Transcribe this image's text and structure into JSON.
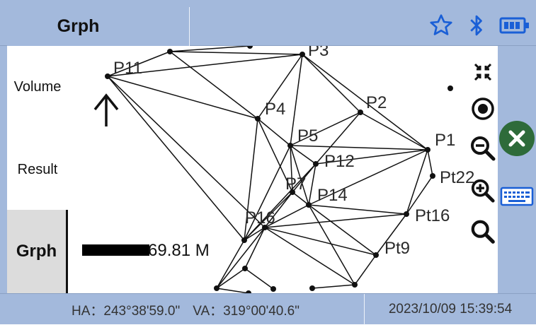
{
  "header": {
    "title": "Grph",
    "icons": [
      "star-icon",
      "bluetooth-icon",
      "battery-icon"
    ]
  },
  "sidebar": {
    "items": [
      {
        "label": "Volume",
        "active": false
      },
      {
        "label": "Result",
        "active": false
      },
      {
        "label": "Grph",
        "active": true
      }
    ]
  },
  "graph": {
    "points": [
      {
        "name": "P11",
        "show_label": true
      },
      {
        "name": "P3",
        "show_label": true
      },
      {
        "name": "P2",
        "show_label": true
      },
      {
        "name": "P4",
        "show_label": true
      },
      {
        "name": "P5",
        "show_label": true
      },
      {
        "name": "P1",
        "show_label": true
      },
      {
        "name": "P12",
        "show_label": true
      },
      {
        "name": "Pt22",
        "show_label": true
      },
      {
        "name": "P14",
        "show_label": true
      },
      {
        "name": "P7",
        "show_label": true
      },
      {
        "name": "Pt16",
        "show_label": true
      },
      {
        "name": "Pt9",
        "show_label": true
      },
      {
        "name": "P16",
        "show_label": true
      }
    ],
    "scale_text": "69.81 M",
    "north_arrow": "north-arrow-icon"
  },
  "tools": {
    "icons": [
      "collapse-icon",
      "locate-icon",
      "zoom-out-icon",
      "zoom-in-icon",
      "search-icon",
      "close-icon",
      "keyboard-icon"
    ]
  },
  "status": {
    "ha": "HA：243°38'59.0\"",
    "va": "VA：319°00'40.6\"",
    "datetime": "2023/10/09 15:39:54"
  },
  "colors": {
    "bar": "#a3b9dc",
    "icon_blue": "#1a5fd6",
    "close_green": "#2e6b3a"
  }
}
